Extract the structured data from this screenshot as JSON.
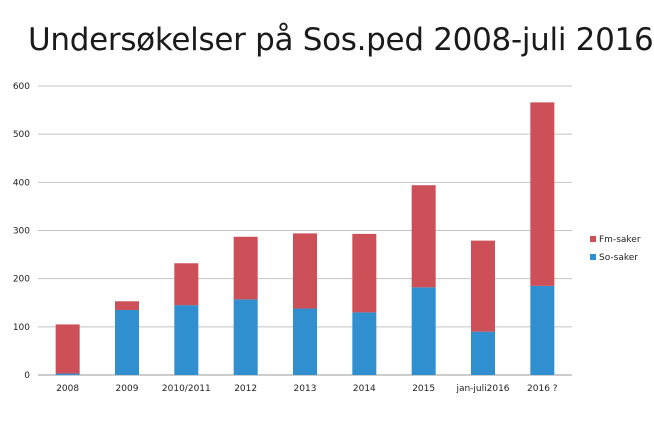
{
  "chart_data": {
    "type": "bar",
    "stacked": true,
    "title": "Undersøkelser på Sos.ped 2008-juli 2016",
    "xlabel": "",
    "ylabel": "",
    "ylim": [
      0,
      600
    ],
    "yticks": [
      0,
      100,
      200,
      300,
      400,
      500,
      600
    ],
    "grid": true,
    "legend_position": "right",
    "categories": [
      "2008",
      "2009",
      "2010/2011",
      "2012",
      "2013",
      "2014",
      "2015",
      "jan-juli2016",
      "2016 ?"
    ],
    "series": [
      {
        "name": "So-saker",
        "color": "#2f8fcf",
        "values": [
          3,
          135,
          145,
          157,
          138,
          130,
          182,
          90,
          185
        ]
      },
      {
        "name": "Fm-saker",
        "color": "#cd4f57",
        "values": [
          102,
          18,
          87,
          130,
          156,
          163,
          212,
          189,
          381
        ]
      }
    ]
  }
}
